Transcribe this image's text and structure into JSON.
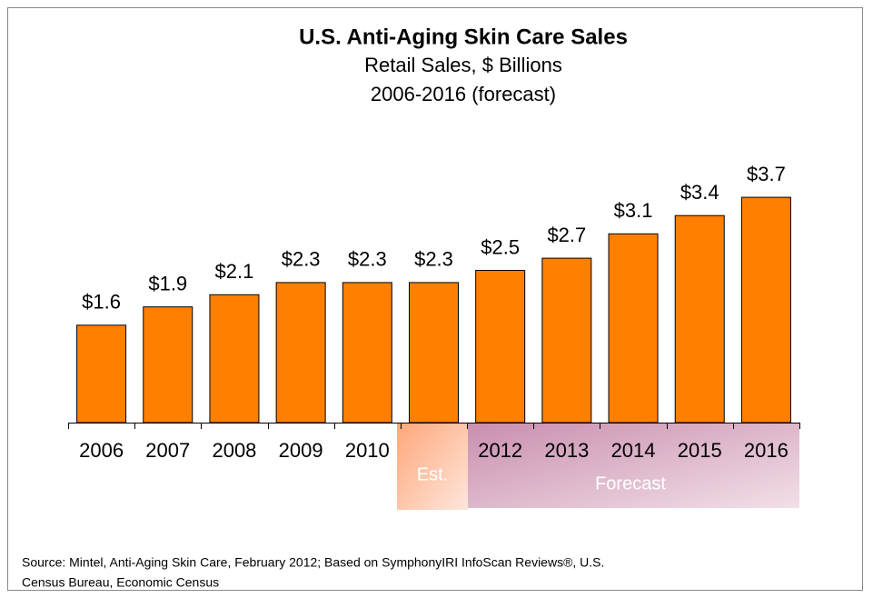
{
  "chart_data": {
    "type": "bar",
    "title": "U.S. Anti-Aging Skin Care Sales",
    "subtitle": [
      "Retail Sales, $ Billions",
      "2006-2016 (forecast)"
    ],
    "categories": [
      "2006",
      "2007",
      "2008",
      "2009",
      "2010",
      null,
      "2012",
      "2013",
      "2014",
      "2015",
      "2016"
    ],
    "values": [
      1.6,
      1.9,
      2.1,
      2.3,
      2.3,
      2.3,
      2.5,
      2.7,
      3.1,
      3.4,
      3.7
    ],
    "value_labels": [
      "$1.6",
      "$1.9",
      "$2.1",
      "$2.3",
      "$2.3",
      "$2.3",
      "$2.5",
      "$2.7",
      "$3.1",
      "$3.4",
      "$3.7"
    ],
    "color": "#ff7f00",
    "annotations": [
      "Est.",
      "Forecast"
    ],
    "source": [
      "Source:  Mintel, Anti-Aging Skin Care, February 2012; Based on SymphonyIRI InfoScan Reviews®, U.S.",
      "Census Bureau, Economic Census"
    ]
  }
}
